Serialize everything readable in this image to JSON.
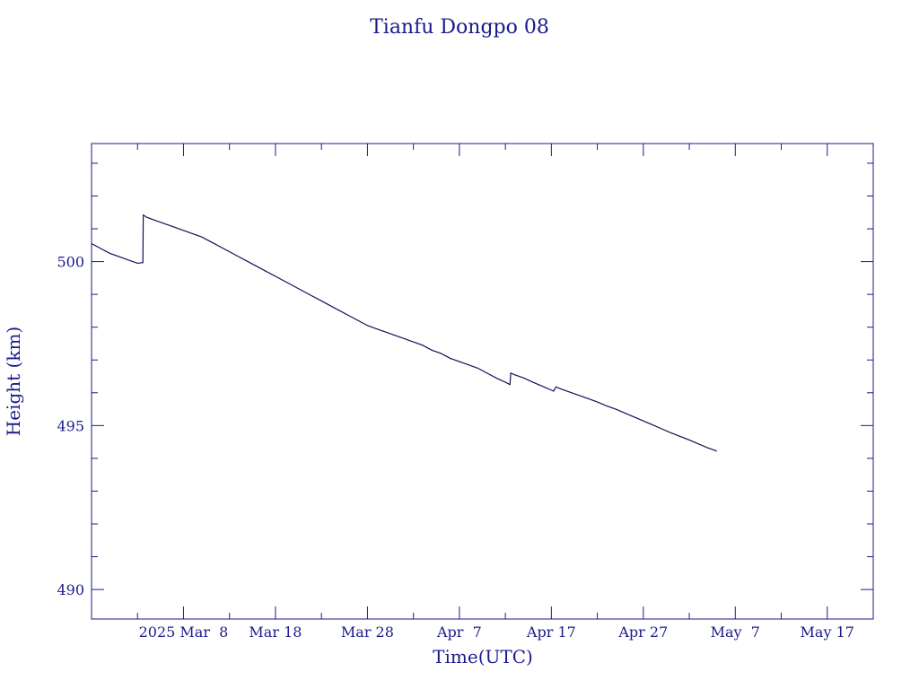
{
  "chart_data": {
    "type": "line",
    "title": "Tianfu Dongpo 08",
    "xlabel": "Time(UTC)",
    "ylabel": "Height (km)",
    "x_tick_labels": [
      "2025 Mar  8",
      "Mar 18",
      "Mar 28",
      "Apr  7",
      "Apr 17",
      "Apr 27",
      "May  7",
      "May 17"
    ],
    "x_tick_dates": [
      "2025-03-08",
      "2025-03-18",
      "2025-03-28",
      "2025-04-07",
      "2025-04-17",
      "2025-04-27",
      "2025-05-07",
      "2025-05-17"
    ],
    "y_ticks": [
      490,
      495,
      500
    ],
    "xlim": [
      "2025-02-26",
      "2025-05-22"
    ],
    "ylim": [
      489.1,
      503.6
    ],
    "grid": false,
    "colors": {
      "axis": "#1a1a8c",
      "line": "#10105a"
    },
    "series": [
      {
        "x": [
          "2025-02-26",
          "2025-02-27",
          "2025-02-28",
          "2025-03-01",
          "2025-03-02",
          "2025-03-03",
          "2025-03-03T14:00",
          "2025-03-03T15:00",
          "2025-03-04",
          "2025-03-05",
          "2025-03-06",
          "2025-03-07",
          "2025-03-08",
          "2025-03-09",
          "2025-03-10",
          "2025-03-11",
          "2025-03-12",
          "2025-03-13",
          "2025-03-14",
          "2025-03-15",
          "2025-03-16",
          "2025-03-17",
          "2025-03-18",
          "2025-03-19",
          "2025-03-20",
          "2025-03-21",
          "2025-03-22",
          "2025-03-23",
          "2025-03-24",
          "2025-03-25",
          "2025-03-26",
          "2025-03-27",
          "2025-03-28",
          "2025-03-29",
          "2025-03-30",
          "2025-03-31",
          "2025-04-01",
          "2025-04-02",
          "2025-04-03",
          "2025-04-04",
          "2025-04-05",
          "2025-04-06",
          "2025-04-07",
          "2025-04-08",
          "2025-04-09",
          "2025-04-10",
          "2025-04-11",
          "2025-04-12",
          "2025-04-12T12:00",
          "2025-04-12T14:00",
          "2025-04-13",
          "2025-04-14",
          "2025-04-15",
          "2025-04-16",
          "2025-04-17",
          "2025-04-17T06:00",
          "2025-04-17T12:00",
          "2025-04-18",
          "2025-04-19",
          "2025-04-20",
          "2025-04-21",
          "2025-04-22",
          "2025-04-23",
          "2025-04-24",
          "2025-04-25",
          "2025-04-26",
          "2025-04-27",
          "2025-04-28",
          "2025-04-29",
          "2025-04-30",
          "2025-05-01",
          "2025-05-02",
          "2025-05-03",
          "2025-05-04",
          "2025-05-05"
        ],
        "y": [
          500.55,
          500.4,
          500.25,
          500.15,
          500.05,
          499.95,
          499.97,
          501.42,
          501.35,
          501.25,
          501.15,
          501.05,
          500.95,
          500.85,
          500.75,
          500.6,
          500.45,
          500.3,
          500.15,
          500.0,
          499.85,
          499.7,
          499.55,
          499.4,
          499.25,
          499.1,
          498.95,
          498.8,
          498.65,
          498.5,
          498.35,
          498.2,
          498.05,
          497.95,
          497.85,
          497.75,
          497.65,
          497.55,
          497.45,
          497.3,
          497.2,
          497.05,
          496.95,
          496.85,
          496.75,
          496.6,
          496.45,
          496.32,
          496.25,
          496.6,
          496.55,
          496.45,
          496.32,
          496.2,
          496.08,
          496.05,
          496.18,
          496.12,
          496.02,
          495.92,
          495.82,
          495.72,
          495.6,
          495.5,
          495.38,
          495.26,
          495.14,
          495.02,
          494.9,
          494.78,
          494.67,
          494.56,
          494.44,
          494.32,
          494.22
        ]
      }
    ]
  }
}
